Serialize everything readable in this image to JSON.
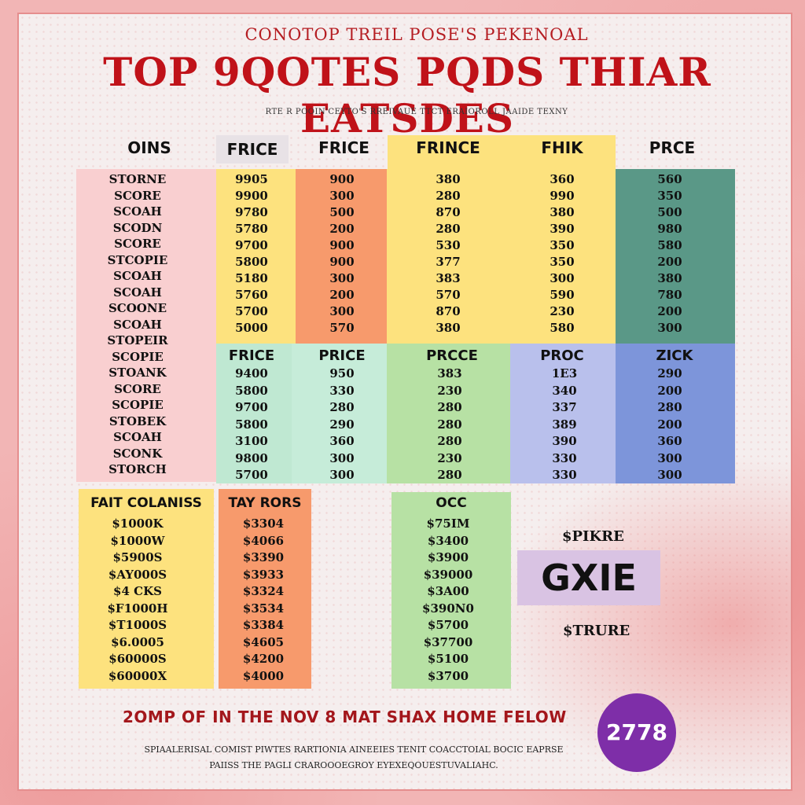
{
  "header": {
    "top_line": "CONOTOP TREIL POSE'S PEKENOAL",
    "title": "TOP 9QOTES PQDS THIAR EATSDES",
    "subtitle": "RTE R POOIN'CEYTO'S RREIVAUE  TTCT ERAIOROLL  JAAIDE TEXNY"
  },
  "top_headers": [
    "OINS",
    "FRICE",
    "FRICE",
    "FRINCE",
    "FHIK",
    "PRCE"
  ],
  "names_col": [
    "STORNE",
    "SCORE",
    "SCOAH",
    "SCODN",
    "SCORE",
    "STCOPIE",
    "SCOAH",
    "SCOAH",
    "SCOONE",
    "SCOAH",
    "STOPEIR",
    "SCOPIE",
    "STOANK",
    "SCORE",
    "SCOPIE",
    "STOBEK",
    "SCOAH",
    "SCONK",
    "STORCH"
  ],
  "upper_cols": [
    {
      "values": [
        "9905",
        "9900",
        "9780",
        "5780",
        "9700",
        "5800",
        "5180",
        "5760",
        "5700",
        "5000"
      ]
    },
    {
      "values": [
        "900",
        "300",
        "500",
        "200",
        "900",
        "900",
        "300",
        "200",
        "300",
        "570"
      ]
    },
    {
      "values": [
        "380",
        "280",
        "870",
        "280",
        "530",
        "377",
        "383",
        "570",
        "870",
        "380"
      ]
    },
    {
      "values": [
        "360",
        "990",
        "380",
        "390",
        "350",
        "350",
        "300",
        "590",
        "230",
        "580"
      ]
    },
    {
      "values": [
        "560",
        "350",
        "500",
        "980",
        "580",
        "200",
        "380",
        "780",
        "200",
        "300"
      ]
    }
  ],
  "lower_headers": [
    "FRICE",
    "PRICE",
    "PRCCE",
    "PROC",
    "ZICK"
  ],
  "lower_cols": [
    {
      "values": [
        "9400",
        "5800",
        "9700",
        "5800",
        "3100",
        "9800",
        "5700"
      ]
    },
    {
      "values": [
        "950",
        "330",
        "280",
        "290",
        "360",
        "300",
        "300"
      ]
    },
    {
      "values": [
        "383",
        "230",
        "280",
        "280",
        "280",
        "230",
        "280"
      ]
    },
    {
      "values": [
        "1E3",
        "340",
        "337",
        "389",
        "390",
        "330",
        "330"
      ]
    },
    {
      "values": [
        "290",
        "200",
        "280",
        "200",
        "360",
        "300",
        "300"
      ]
    }
  ],
  "bottom_blocks": {
    "yellow": {
      "header": "FAIT COLANISS",
      "values": [
        "$1000K",
        "$1000W",
        "$5900S",
        "$AY000S",
        "$4 CKS",
        "$F1000H",
        "$T1000S",
        "$6.0005",
        "$60000S",
        "$60000X"
      ]
    },
    "orange": {
      "header": "TAY RORS",
      "values": [
        "$3304",
        "$4066",
        "$3390",
        "$3933",
        "$3324",
        "$3534",
        "$3384",
        "$4605",
        "$4200",
        "$4000"
      ]
    },
    "green": {
      "header": "OCC",
      "values": [
        "$75IM",
        "$3400",
        "$3900",
        "$39000",
        "$3A00",
        "$390N0",
        "$5700",
        "$37700",
        "$5100",
        "$3700"
      ]
    }
  },
  "side": {
    "top_label": "$PIKRE",
    "box_text": "GXIE",
    "bottom_label": "$TRURE"
  },
  "footer": {
    "headline": "2OMP OF IN THE NOV 8 MAT SHAX HOME FELOW",
    "fine1": "SPIAALERISAL COMIST PIWTES RARTIONIA AINEEIES TENIT COACCTOIAL BOCIC EAPRSE",
    "fine2": "PAIISS THE PAGLI CRAROOOEGROY EYEXEQOUESTUVALIAHC.",
    "badge": "2778"
  },
  "colors": {
    "pink": "#f9cfd0",
    "yellow": "#fde27e",
    "orange": "#f79a6c",
    "teal": "#5a9887",
    "mint": "#bfe8d2",
    "lightgreen": "#b7e1a4",
    "lavender": "#b9c0ec",
    "blue": "#7d95da",
    "title_red": "#c01219",
    "badge_purple": "#7e2ea8"
  }
}
